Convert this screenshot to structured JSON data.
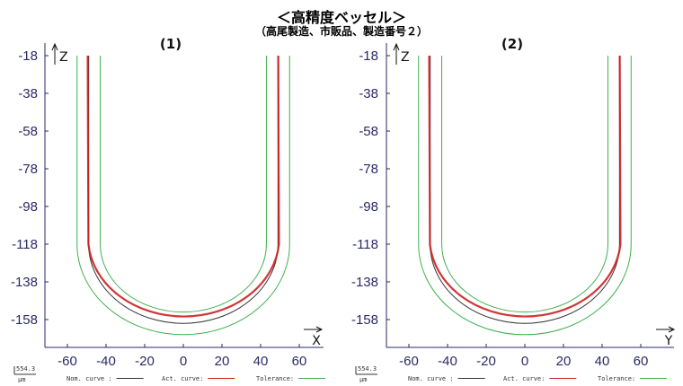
{
  "title": "＜高精度ベッセル＞",
  "subtitle": "（高尾製造、市販品、製造番号２）",
  "colors": {
    "nominal": "#333333",
    "actual": "#cc2020",
    "tolerance": "#3fb04f",
    "axis": "#2a2a66"
  },
  "chart_data": [
    {
      "type": "line",
      "panel_label": "(1)",
      "xlabel": "X",
      "ylabel": "Z",
      "xlim": [
        -70,
        70
      ],
      "ylim": [
        -166,
        -18
      ],
      "x_ticks": [
        "-60",
        "-40",
        "-20",
        "0",
        "20",
        "40",
        "60"
      ],
      "y_ticks": [
        "-18",
        "-38",
        "-58",
        "-78",
        "-98",
        "-118",
        "-138",
        "-158"
      ],
      "series": [
        {
          "name": "Nom. curve :",
          "color": "#333333",
          "shape": "U",
          "half_width": 49,
          "bottom_z": -160,
          "top_z": -18
        },
        {
          "name": "Act. curve:",
          "color": "#cc2020",
          "shape": "U",
          "half_width": 49.5,
          "bottom_z": -160,
          "top_z": -18
        },
        {
          "name": "Tolerance:",
          "color": "#3fb04f",
          "shape": "U",
          "half_width": [
            43,
            55
          ],
          "bottom_z": [
            -154,
            -166
          ],
          "top_z": -18
        }
      ],
      "scale_label": "554.3",
      "scale_unit": "µm"
    },
    {
      "type": "line",
      "panel_label": "(2)",
      "xlabel": "Y",
      "ylabel": "Z",
      "xlim": [
        -70,
        70
      ],
      "ylim": [
        -166,
        -18
      ],
      "x_ticks": [
        "-60",
        "-40",
        "-20",
        "0",
        "20",
        "40",
        "60"
      ],
      "y_ticks": [
        "-18",
        "-38",
        "-58",
        "-78",
        "-98",
        "-118",
        "-138",
        "-158"
      ],
      "series": [
        {
          "name": "Nom. curve :",
          "color": "#333333",
          "shape": "U",
          "half_width": 49,
          "bottom_z": -160,
          "top_z": -18
        },
        {
          "name": "Act. curve:",
          "color": "#cc2020",
          "shape": "U",
          "half_width": 49.5,
          "bottom_z": -160,
          "top_z": -18
        },
        {
          "name": "Tolerance:",
          "color": "#3fb04f",
          "shape": "U",
          "half_width": [
            43,
            55
          ],
          "bottom_z": [
            -154,
            -166
          ],
          "top_z": -18
        }
      ],
      "scale_label": "554.3",
      "scale_unit": "µm"
    }
  ]
}
